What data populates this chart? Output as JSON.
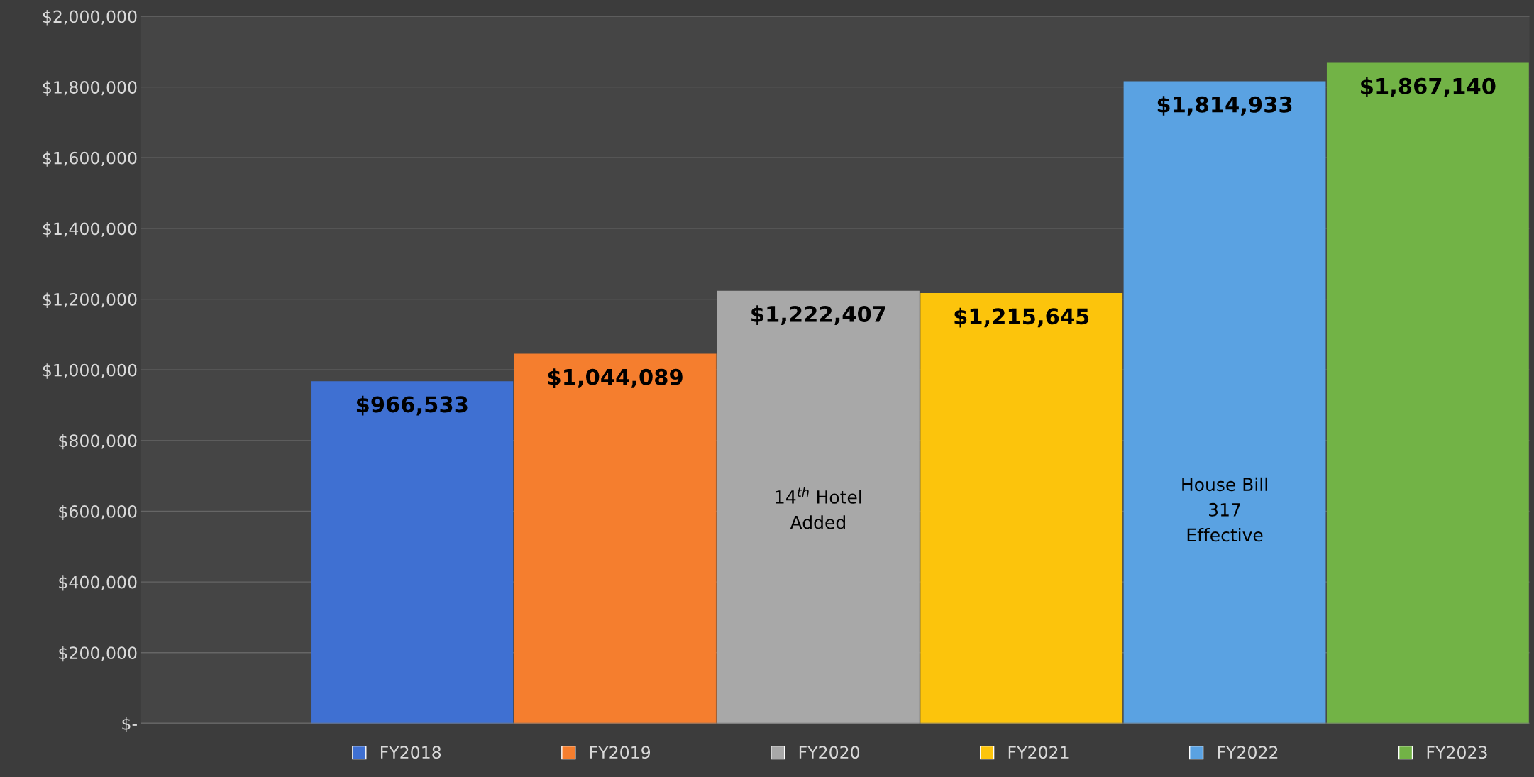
{
  "chart_data": {
    "type": "bar",
    "categories": [
      null
    ],
    "series": [
      {
        "name": "FY2018",
        "color": "#3f70d2",
        "values": [
          966533
        ],
        "value_labels": [
          "$966,533"
        ]
      },
      {
        "name": "FY2019",
        "color": "#f57e2e",
        "values": [
          1044089
        ],
        "value_labels": [
          "$1,044,089"
        ]
      },
      {
        "name": "FY2020",
        "color": "#a8a8a8",
        "values": [
          1222407
        ],
        "value_labels": [
          "$1,222,407"
        ]
      },
      {
        "name": "FY2021",
        "color": "#fcc40c",
        "values": [
          1215645
        ],
        "value_labels": [
          "$1,215,645"
        ]
      },
      {
        "name": "FY2022",
        "color": "#5aa2e2",
        "values": [
          1814933
        ],
        "value_labels": [
          "$1,814,933"
        ]
      },
      {
        "name": "FY2023",
        "color": "#72b346",
        "values": [
          1867140
        ],
        "value_labels": [
          "$1,867,140"
        ]
      }
    ],
    "annotations": [
      "14$^{th}$ Hotel\nAdded",
      "House Bill\n317\nEffective"
    ],
    "ylim": [
      0,
      2000000
    ],
    "yticks": [
      {
        "value": 0,
        "label": "$-"
      },
      {
        "value": 200000,
        "label": "$200,000"
      },
      {
        "value": 400000,
        "label": "$400,000"
      },
      {
        "value": 600000,
        "label": "$600,000"
      },
      {
        "value": 800000,
        "label": "$800,000"
      },
      {
        "value": 1000000,
        "label": "$1,000,000"
      },
      {
        "value": 1200000,
        "label": "$1,200,000"
      },
      {
        "value": 1400000,
        "label": "$1,400,000"
      },
      {
        "value": 1600000,
        "label": "$1,600,000"
      },
      {
        "value": 1800000,
        "label": "$1,800,000"
      },
      {
        "value": 2000000,
        "label": "$2,000,000"
      }
    ],
    "grid": "y",
    "legend": "bottom"
  }
}
